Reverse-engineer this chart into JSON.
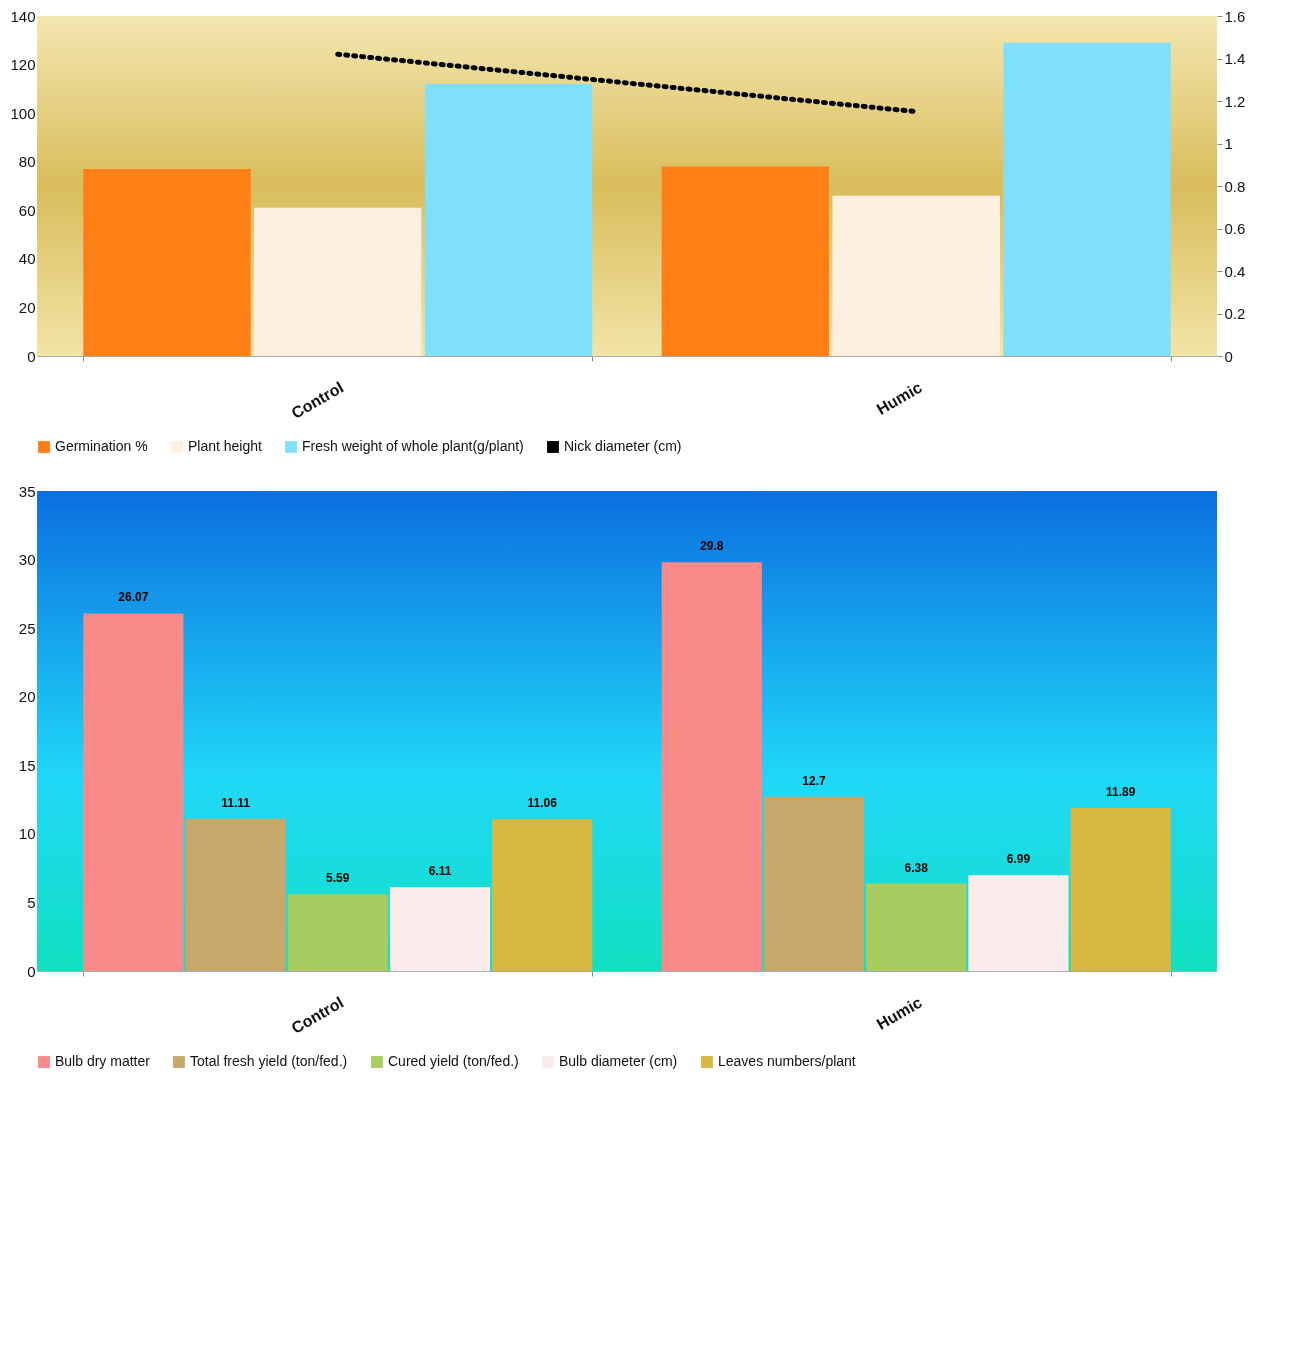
{
  "chart_data": [
    {
      "type": "bar",
      "categories": [
        "Control",
        "Humic"
      ],
      "ylim": [
        0,
        140
      ],
      "yticks": [
        0,
        20,
        40,
        60,
        80,
        100,
        120,
        140
      ],
      "y2lim": [
        0,
        1.6
      ],
      "y2ticks": [
        0,
        0.2,
        0.4,
        0.6,
        0.8,
        1,
        1.2,
        1.4,
        1.6
      ],
      "legend": "bottom",
      "series": [
        {
          "name": "Germination %",
          "color": "#ff7f17",
          "values": [
            77,
            78
          ]
        },
        {
          "name": "Plant height",
          "color": "#fdf0e0",
          "values": [
            61,
            66
          ]
        },
        {
          "name": "Fresh weight of whole plant(g/plant)",
          "color": "#80e0fa",
          "values": [
            112,
            129
          ]
        },
        {
          "name": "Nick diameter (cm)",
          "type": "line",
          "axis": "y2",
          "line_style": "dotted",
          "color": "#000000",
          "values": [
            1.42,
            1.15
          ]
        }
      ]
    },
    {
      "type": "bar",
      "categories": [
        "Control",
        "Humic"
      ],
      "ylim": [
        0,
        35
      ],
      "yticks": [
        0,
        5,
        10,
        15,
        20,
        25,
        30,
        35
      ],
      "data_labels": true,
      "legend": "bottom",
      "series": [
        {
          "name": "Bulb dry matter",
          "color": "#f88a8a",
          "values": [
            26.07,
            29.8
          ]
        },
        {
          "name": "Total fresh yield (ton/fed.)",
          "color": "#c8a86a",
          "values": [
            11.11,
            12.7
          ]
        },
        {
          "name": "Cured yield (ton/fed.)",
          "color": "#a8cc60",
          "values": [
            5.59,
            6.38
          ]
        },
        {
          "name": "Bulb diameter (cm)",
          "color": "#fbecec",
          "values": [
            6.11,
            6.99
          ]
        },
        {
          "name": "Leaves numbers/plant",
          "color": "#d8b840",
          "values": [
            11.06,
            11.89
          ]
        }
      ]
    }
  ]
}
